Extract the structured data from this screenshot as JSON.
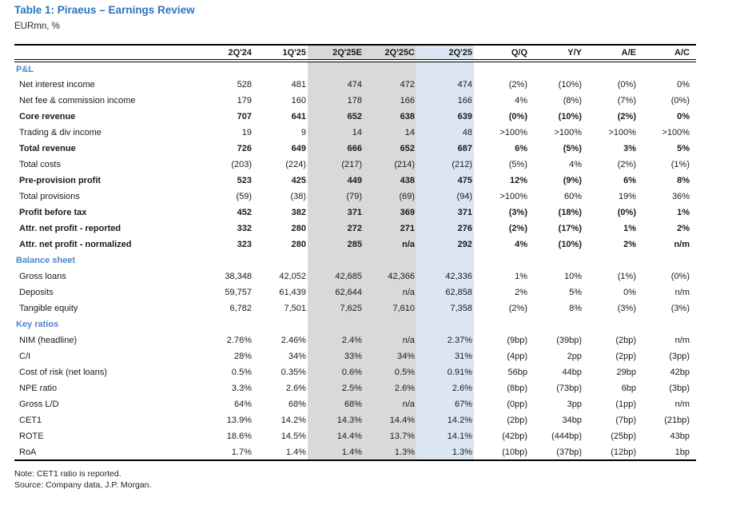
{
  "title": "Table 1: Piraeus – Earnings Review",
  "subtitle": "EURmn, %",
  "note": "Note: CET1 ratio is reported.",
  "source": "Source: Company data, J.P. Morgan.",
  "colors": {
    "title_blue": "#2a74c1",
    "section_blue": "#4f87c8",
    "gray_band": "#d9d9d9",
    "blue_band": "#dce6f2"
  },
  "chart_data": {
    "type": "table",
    "columns": [
      "",
      "2Q'24",
      "1Q'25",
      "2Q'25E",
      "2Q'25C",
      "2Q'25",
      "Q/Q",
      "Y/Y",
      "A/E",
      "A/C"
    ],
    "shaded_columns": {
      "gray": [
        "2Q'25E",
        "2Q'25C"
      ],
      "blue": [
        "2Q'25"
      ]
    },
    "sections": [
      {
        "header": "P&L",
        "rows": [
          {
            "label": "Net interest income",
            "bold": false,
            "values": [
              "528",
              "481",
              "474",
              "472",
              "474",
              "(2%)",
              "(10%)",
              "(0%)",
              "0%"
            ]
          },
          {
            "label": "Net fee & commission income",
            "bold": false,
            "values": [
              "179",
              "160",
              "178",
              "166",
              "166",
              "4%",
              "(8%)",
              "(7%)",
              "(0%)"
            ]
          },
          {
            "label": "Core revenue",
            "bold": true,
            "values": [
              "707",
              "641",
              "652",
              "638",
              "639",
              "(0%)",
              "(10%)",
              "(2%)",
              "0%"
            ]
          },
          {
            "label": "Trading & div income",
            "bold": false,
            "values": [
              "19",
              "9",
              "14",
              "14",
              "48",
              ">100%",
              ">100%",
              ">100%",
              ">100%"
            ]
          },
          {
            "label": "Total revenue",
            "bold": true,
            "values": [
              "726",
              "649",
              "666",
              "652",
              "687",
              "6%",
              "(5%)",
              "3%",
              "5%"
            ]
          },
          {
            "label": "Total costs",
            "bold": false,
            "values": [
              "(203)",
              "(224)",
              "(217)",
              "(214)",
              "(212)",
              "(5%)",
              "4%",
              "(2%)",
              "(1%)"
            ]
          },
          {
            "label": "Pre-provision profit",
            "bold": true,
            "values": [
              "523",
              "425",
              "449",
              "438",
              "475",
              "12%",
              "(9%)",
              "6%",
              "8%"
            ]
          },
          {
            "label": "Total provisions",
            "bold": false,
            "values": [
              "(59)",
              "(38)",
              "(79)",
              "(69)",
              "(94)",
              ">100%",
              "60%",
              "19%",
              "36%"
            ]
          },
          {
            "label": "Profit before tax",
            "bold": true,
            "values": [
              "452",
              "382",
              "371",
              "369",
              "371",
              "(3%)",
              "(18%)",
              "(0%)",
              "1%"
            ]
          },
          {
            "label": "Attr. net profit - reported",
            "bold": true,
            "values": [
              "332",
              "280",
              "272",
              "271",
              "276",
              "(2%)",
              "(17%)",
              "1%",
              "2%"
            ]
          },
          {
            "label": "Attr. net profit - normalized",
            "bold": true,
            "values": [
              "323",
              "280",
              "285",
              "n/a",
              "292",
              "4%",
              "(10%)",
              "2%",
              "n/m"
            ]
          }
        ]
      },
      {
        "header": "Balance sheet",
        "rows": [
          {
            "label": "Gross loans",
            "bold": false,
            "values": [
              "38,348",
              "42,052",
              "42,685",
              "42,366",
              "42,336",
              "1%",
              "10%",
              "(1%)",
              "(0%)"
            ]
          },
          {
            "label": "Deposits",
            "bold": false,
            "values": [
              "59,757",
              "61,439",
              "62,644",
              "n/a",
              "62,858",
              "2%",
              "5%",
              "0%",
              "n/m"
            ]
          },
          {
            "label": "Tangible equity",
            "bold": false,
            "values": [
              "6,782",
              "7,501",
              "7,625",
              "7,610",
              "7,358",
              "(2%)",
              "8%",
              "(3%)",
              "(3%)"
            ]
          }
        ]
      },
      {
        "header": "Key ratios",
        "rows": [
          {
            "label": "NIM (headline)",
            "bold": false,
            "values": [
              "2.76%",
              "2.46%",
              "2.4%",
              "n/a",
              "2.37%",
              "(9bp)",
              "(39bp)",
              "(2bp)",
              "n/m"
            ]
          },
          {
            "label": "C/I",
            "bold": false,
            "values": [
              "28%",
              "34%",
              "33%",
              "34%",
              "31%",
              "(4pp)",
              "2pp",
              "(2pp)",
              "(3pp)"
            ]
          },
          {
            "label": "Cost of risk (net loans)",
            "bold": false,
            "values": [
              "0.5%",
              "0.35%",
              "0.6%",
              "0.5%",
              "0.91%",
              "56bp",
              "44bp",
              "29bp",
              "42bp"
            ]
          },
          {
            "label": "NPE ratio",
            "bold": false,
            "values": [
              "3.3%",
              "2.6%",
              "2.5%",
              "2.6%",
              "2.6%",
              "(8bp)",
              "(73bp)",
              "6bp",
              "(3bp)"
            ]
          },
          {
            "label": "Gross L/D",
            "bold": false,
            "values": [
              "64%",
              "68%",
              "68%",
              "n/a",
              "67%",
              "(0pp)",
              "3pp",
              "(1pp)",
              "n/m"
            ]
          },
          {
            "label": "CET1",
            "bold": false,
            "values": [
              "13.9%",
              "14.2%",
              "14.3%",
              "14.4%",
              "14.2%",
              "(2bp)",
              "34bp",
              "(7bp)",
              "(21bp)"
            ]
          },
          {
            "label": "ROTE",
            "bold": false,
            "values": [
              "18.6%",
              "14.5%",
              "14.4%",
              "13.7%",
              "14.1%",
              "(42bp)",
              "(444bp)",
              "(25bp)",
              "43bp"
            ]
          },
          {
            "label": "RoA",
            "bold": false,
            "values": [
              "1.7%",
              "1.4%",
              "1.4%",
              "1.3%",
              "1.3%",
              "(10bp)",
              "(37bp)",
              "(12bp)",
              "1bp"
            ]
          }
        ]
      }
    ]
  }
}
